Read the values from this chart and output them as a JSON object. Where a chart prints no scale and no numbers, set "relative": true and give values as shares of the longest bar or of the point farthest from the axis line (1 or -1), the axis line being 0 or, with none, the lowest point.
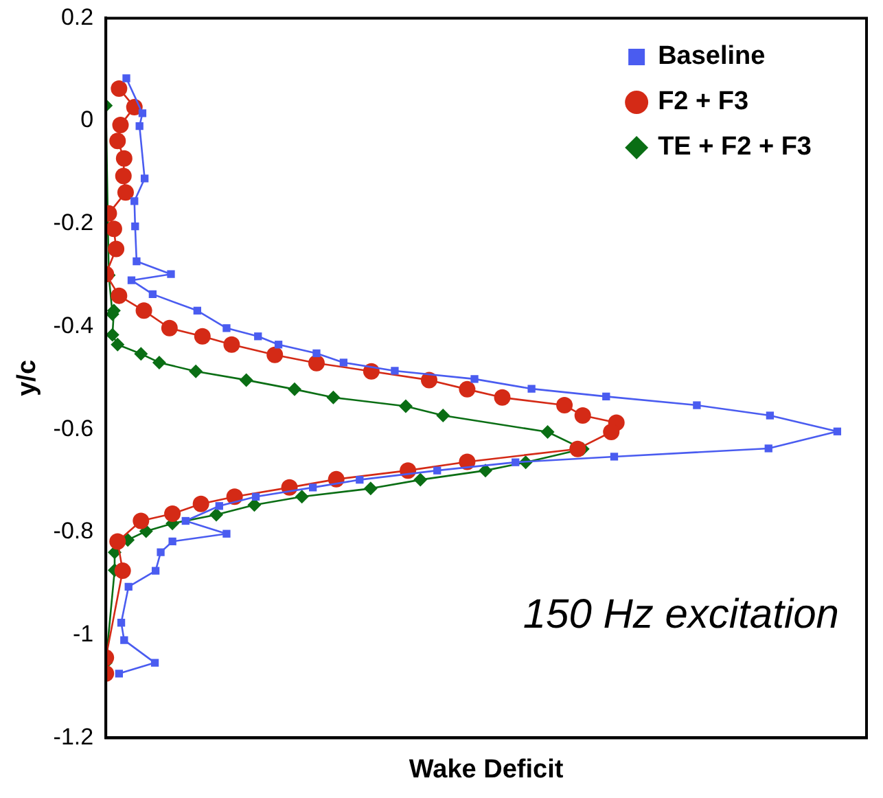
{
  "chart_data": {
    "type": "line",
    "orientation": "horizontal",
    "xlabel": "Wake Deficit",
    "ylabel": "y/c",
    "relative": true,
    "tick_labels": "y",
    "ylim": [
      -1.2,
      0.2
    ],
    "yticks": [
      -1.2,
      -1,
      -0.8,
      -0.6,
      -0.4,
      -0.2,
      0,
      0.2
    ],
    "grid": false,
    "legend": "top right",
    "line_style": "solid",
    "annotations": [
      "150 Hz excitation"
    ],
    "series": [
      {
        "name": "Baseline",
        "color": "#4a5cf0",
        "marker": "square",
        "values": [
          0.028,
          0.05,
          0.046,
          0.053,
          0.039,
          0.04,
          0.042,
          0.089,
          0.035,
          0.064,
          0.125,
          0.165,
          0.208,
          0.236,
          0.288,
          0.325,
          0.395,
          0.504,
          0.582,
          0.684,
          0.808,
          0.908,
          1.0,
          0.906,
          0.695,
          0.56,
          0.453,
          0.347,
          0.283,
          0.205,
          0.155,
          0.109,
          0.165,
          0.091,
          0.075,
          0.068,
          0.031,
          0.021,
          0.025,
          0.067,
          0.018
        ],
        "x": [
          0.083,
          0.015,
          -0.01,
          -0.112,
          -0.156,
          -0.205,
          -0.273,
          -0.298,
          -0.31,
          -0.337,
          -0.369,
          -0.403,
          -0.419,
          -0.435,
          -0.452,
          -0.47,
          -0.486,
          -0.502,
          -0.521,
          -0.536,
          -0.553,
          -0.573,
          -0.604,
          -0.637,
          -0.653,
          -0.664,
          -0.68,
          -0.698,
          -0.713,
          -0.731,
          -0.749,
          -0.778,
          -0.803,
          -0.818,
          -0.839,
          -0.875,
          -0.906,
          -0.976,
          -1.01,
          -1.054,
          -1.075
        ]
      },
      {
        "name": "F2 + F3",
        "color": "#d42a16",
        "marker": "circle",
        "values": [
          0.018,
          0.039,
          0.02,
          0.016,
          0.025,
          0.024,
          0.027,
          0.004,
          0.011,
          0.014,
          0,
          0.018,
          0.052,
          0.087,
          0.132,
          0.172,
          0.231,
          0.288,
          0.363,
          0.442,
          0.494,
          0.542,
          0.627,
          0.652,
          0.698,
          0.691,
          0.645,
          0.494,
          0.413,
          0.315,
          0.251,
          0.176,
          0.13,
          0.091,
          0.048,
          0.016,
          0.023,
          0,
          0
        ],
        "x": [
          0.063,
          0.027,
          -0.008,
          -0.039,
          -0.073,
          -0.107,
          -0.139,
          -0.18,
          -0.21,
          -0.249,
          -0.298,
          -0.34,
          -0.369,
          -0.403,
          -0.419,
          -0.435,
          -0.455,
          -0.471,
          -0.487,
          -0.504,
          -0.522,
          -0.538,
          -0.553,
          -0.573,
          -0.587,
          -0.605,
          -0.638,
          -0.663,
          -0.68,
          -0.697,
          -0.713,
          -0.731,
          -0.745,
          -0.764,
          -0.778,
          -0.818,
          -0.875,
          -1.044,
          -1.075
        ]
      },
      {
        "name": "TE + F2 + F3",
        "color": "#0a6e14",
        "marker": "diamond",
        "values": [
          0,
          0.004,
          0.009,
          0.011,
          0.009,
          0.016,
          0.048,
          0.073,
          0.123,
          0.192,
          0.258,
          0.311,
          0.41,
          0.461,
          0.604,
          0.652,
          0.574,
          0.519,
          0.43,
          0.362,
          0.268,
          0.203,
          0.151,
          0.091,
          0.055,
          0.03,
          0.012,
          0.012,
          0
        ],
        "x": [
          0.03,
          -0.3,
          -0.376,
          -0.369,
          -0.416,
          -0.435,
          -0.453,
          -0.47,
          -0.487,
          -0.504,
          -0.522,
          -0.538,
          -0.555,
          -0.573,
          -0.605,
          -0.638,
          -0.664,
          -0.68,
          -0.698,
          -0.715,
          -0.731,
          -0.747,
          -0.766,
          -0.783,
          -0.798,
          -0.815,
          -0.839,
          -0.874,
          -1.054
        ]
      }
    ]
  }
}
